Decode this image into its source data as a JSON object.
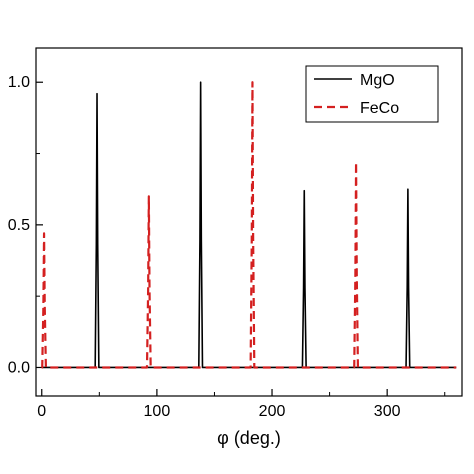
{
  "chart_data": {
    "type": "line",
    "title": "",
    "xlabel": "φ (deg.)",
    "ylabel": "",
    "xlim": [
      -5,
      365
    ],
    "ylim": [
      -0.1,
      1.12
    ],
    "x_ticks": [
      0,
      100,
      200,
      300
    ],
    "y_ticks": [
      0.0,
      0.5,
      1.0
    ],
    "x_tick_labels": [
      "0",
      "100",
      "200",
      "300"
    ],
    "y_tick_labels": [
      "0.0",
      "0.5",
      "1.0"
    ],
    "grid": false,
    "legend_position": "top-right",
    "series": [
      {
        "name": "MgO",
        "color": "#000000",
        "style": "solid",
        "baseline": 0.0,
        "peaks": [
          {
            "x": 48,
            "y": 0.96
          },
          {
            "x": 138,
            "y": 1.0
          },
          {
            "x": 228,
            "y": 0.62
          },
          {
            "x": 318,
            "y": 0.625
          }
        ]
      },
      {
        "name": "FeCo",
        "color": "#d42020",
        "style": "dashed",
        "baseline": 0.0,
        "peaks": [
          {
            "x": 2,
            "y": 0.47
          },
          {
            "x": 93,
            "y": 0.6
          },
          {
            "x": 183,
            "y": 1.0
          },
          {
            "x": 273,
            "y": 0.72
          }
        ]
      }
    ]
  }
}
